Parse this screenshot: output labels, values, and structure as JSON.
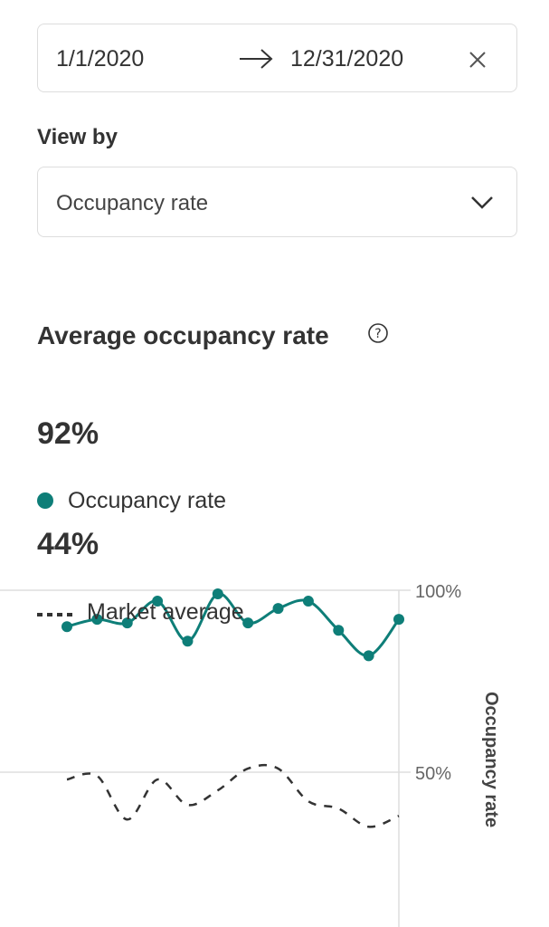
{
  "date_range": {
    "start": "1/1/2020",
    "end": "12/31/2020"
  },
  "view_by": {
    "label": "View by",
    "selected": "Occupancy rate"
  },
  "section": {
    "title": "Average occupancy rate",
    "value": "92%"
  },
  "legend": {
    "occupancy_label": "Occupancy rate",
    "market_value": "44%",
    "market_label": "Market average"
  },
  "icons": [
    "arrow-right-icon",
    "close-icon",
    "chevron-down-icon",
    "help-circle-icon"
  ],
  "colors": {
    "occupancy": "#0e7e78",
    "market": "#333333",
    "grid": "#dddddd"
  },
  "chart_data": {
    "type": "line",
    "ylabel": "Occupancy rate",
    "y_ticks": [
      "100%",
      "50%"
    ],
    "ylim": [
      0,
      100
    ],
    "series": [
      {
        "name": "Occupancy rate",
        "style": "solid-with-points",
        "values": [
          90,
          92,
          91,
          97,
          86,
          99,
          91,
          95,
          97,
          89,
          82,
          92
        ]
      },
      {
        "name": "Market average",
        "style": "dashed",
        "values": [
          48,
          49,
          37,
          48,
          41,
          45,
          51,
          51,
          42,
          40,
          35,
          38
        ]
      }
    ]
  }
}
